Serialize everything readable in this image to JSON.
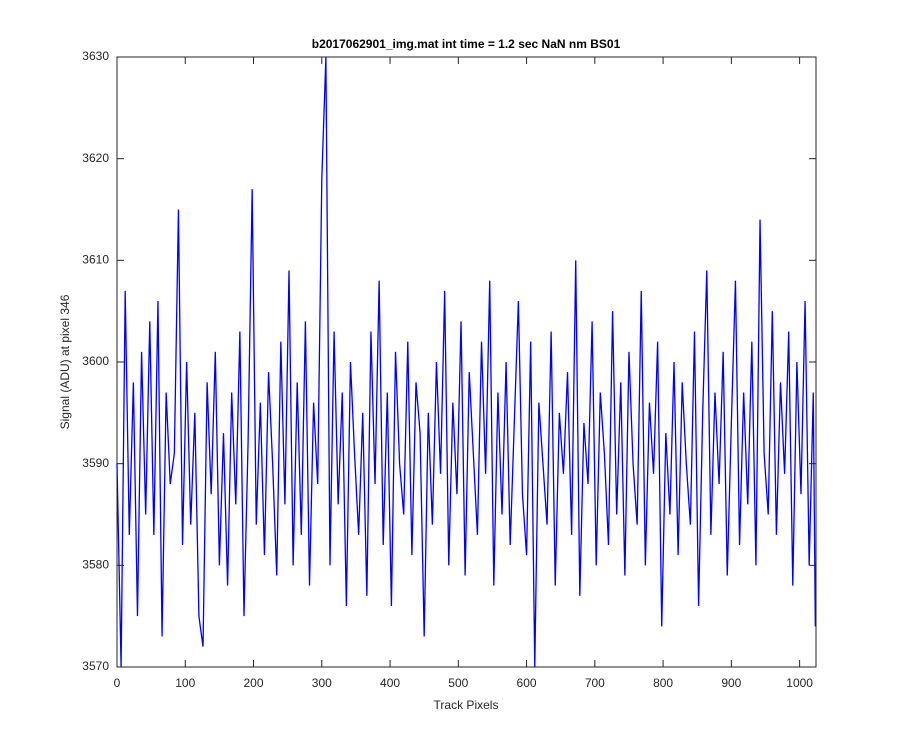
{
  "chart_data": {
    "type": "line",
    "title": "b2017062901_img.mat int time = 1.2 sec  NaN nm BS01",
    "x_label": "Track Pixels",
    "y_label": "Signal (ADU) at pixel 346",
    "x": [
      0,
      6,
      12,
      18,
      24,
      30,
      36,
      42,
      48,
      54,
      60,
      66,
      72,
      78,
      84,
      90,
      96,
      102,
      108,
      114,
      120,
      126,
      132,
      138,
      144,
      150,
      156,
      162,
      168,
      174,
      180,
      186,
      192,
      198,
      204,
      210,
      216,
      222,
      228,
      234,
      240,
      246,
      252,
      258,
      264,
      270,
      276,
      282,
      288,
      294,
      300,
      306,
      312,
      318,
      324,
      330,
      336,
      342,
      348,
      354,
      360,
      366,
      372,
      378,
      384,
      390,
      396,
      402,
      408,
      414,
      420,
      426,
      432,
      438,
      444,
      450,
      456,
      462,
      468,
      474,
      480,
      486,
      492,
      498,
      504,
      510,
      516,
      522,
      528,
      534,
      540,
      546,
      552,
      558,
      564,
      570,
      576,
      582,
      588,
      594,
      600,
      606,
      612,
      618,
      624,
      630,
      636,
      642,
      648,
      654,
      660,
      666,
      672,
      678,
      684,
      690,
      696,
      702,
      708,
      714,
      720,
      726,
      732,
      738,
      744,
      750,
      756,
      762,
      768,
      774,
      780,
      786,
      792,
      798,
      804,
      810,
      816,
      822,
      828,
      834,
      840,
      846,
      852,
      858,
      864,
      870,
      876,
      882,
      888,
      894,
      900,
      906,
      912,
      918,
      924,
      930,
      936,
      942,
      948,
      954,
      960,
      966,
      972,
      978,
      984,
      990,
      996,
      1002,
      1008,
      1014,
      1020,
      1023
    ],
    "series": [
      {
        "color": "#0000ff",
        "values": [
          3590,
          3570,
          3607,
          3583,
          3598,
          3575,
          3601,
          3585,
          3604,
          3583,
          3606,
          3573,
          3597,
          3588,
          3591,
          3615,
          3582,
          3600,
          3584,
          3595,
          3575,
          3572,
          3598,
          3587,
          3601,
          3580,
          3593,
          3578,
          3597,
          3586,
          3603,
          3575,
          3592,
          3617,
          3584,
          3596,
          3581,
          3599,
          3590,
          3579,
          3602,
          3586,
          3609,
          3580,
          3598,
          3583,
          3604,
          3578,
          3596,
          3588,
          3618,
          3630,
          3580,
          3603,
          3586,
          3597,
          3576,
          3600,
          3591,
          3583,
          3595,
          3577,
          3603,
          3588,
          3608,
          3582,
          3597,
          3576,
          3601,
          3590,
          3585,
          3602,
          3581,
          3598,
          3593,
          3573,
          3595,
          3584,
          3600,
          3589,
          3607,
          3580,
          3596,
          3587,
          3604,
          3579,
          3599,
          3591,
          3583,
          3602,
          3589,
          3608,
          3578,
          3597,
          3585,
          3600,
          3582,
          3594,
          3606,
          3587,
          3581,
          3602,
          3570,
          3596,
          3590,
          3584,
          3603,
          3578,
          3595,
          3589,
          3599,
          3583,
          3610,
          3577,
          3594,
          3588,
          3604,
          3580,
          3597,
          3591,
          3582,
          3605,
          3585,
          3598,
          3579,
          3601,
          3590,
          3584,
          3607,
          3580,
          3596,
          3589,
          3602,
          3574,
          3593,
          3585,
          3600,
          3581,
          3598,
          3590,
          3584,
          3603,
          3576,
          3595,
          3609,
          3583,
          3597,
          3588,
          3601,
          3579,
          3594,
          3608,
          3582,
          3597,
          3586,
          3602,
          3580,
          3614,
          3591,
          3585,
          3605,
          3583,
          3598,
          3589,
          3603,
          3578,
          3600,
          3587,
          3606,
          3580,
          3597,
          3574
        ]
      }
    ],
    "xlim": [
      0,
      1024
    ],
    "xticks": [
      0,
      100,
      200,
      300,
      400,
      500,
      600,
      700,
      800,
      900,
      1000
    ],
    "ylim": [
      3570,
      3630
    ],
    "yticks": [
      3570,
      3580,
      3590,
      3600,
      3610,
      3620,
      3630
    ],
    "grid": false
  }
}
